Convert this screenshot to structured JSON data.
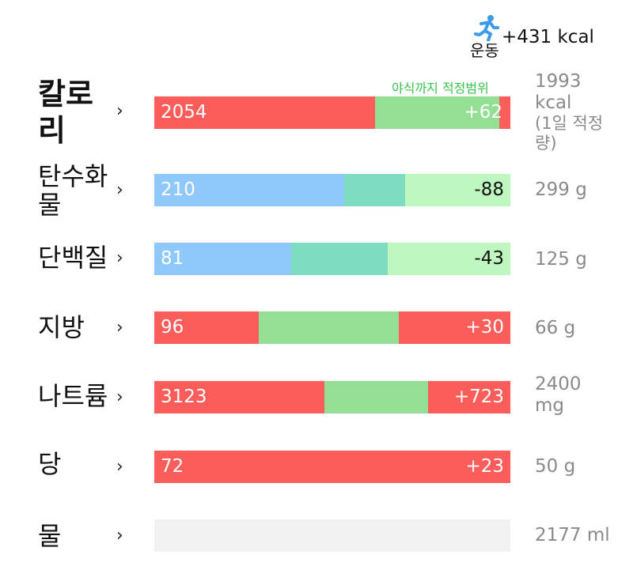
{
  "exercise": {
    "label": "운동",
    "kcal": "+431 kcal",
    "icon": "running-person-icon",
    "icon_color": "#3d9be9"
  },
  "calorie_range_note": "야식까지 적정범위",
  "chevron": "›",
  "colors": {
    "over_red": "#fb5d5b",
    "under_blue": "#8fc8fb",
    "teal": "#7edcc0",
    "green": "#93e095",
    "light_green": "#bef7c0",
    "note_green": "#37c44e",
    "empty_gray": "#f2f2f2"
  },
  "rows": [
    {
      "label": "칼로리",
      "value": "2054",
      "diff": "+62",
      "target": "1993 kcal",
      "target_note": "(1일 적정량)",
      "value_fraction": 0.621,
      "range_end_fraction": 0.969,
      "status": "over"
    },
    {
      "label": "탄수화물",
      "value": "210",
      "diff": "-88",
      "target": "299 g",
      "value_fraction": 0.533,
      "mid_end_fraction": 0.704,
      "status": "under"
    },
    {
      "label": "단백질",
      "value": "81",
      "diff": "-43",
      "target": "125 g",
      "value_fraction": 0.384,
      "mid_end_fraction": 0.656,
      "status": "under"
    },
    {
      "label": "지방",
      "value": "96",
      "diff": "+30",
      "target": "66 g",
      "value_fraction": 0.293,
      "range_end_fraction": 0.686,
      "status": "over"
    },
    {
      "label": "나트륨",
      "value": "3123",
      "diff": "+723",
      "target": "2400 mg",
      "value_fraction": 0.479,
      "range_end_fraction": 0.769,
      "status": "over"
    },
    {
      "label": "당",
      "value": "72",
      "diff": "+23",
      "target": "50 g",
      "value_fraction": 1.0,
      "status": "over"
    },
    {
      "label": "물",
      "value": "",
      "diff": "",
      "target": "2177 ml",
      "value_fraction": 0.0,
      "status": "empty"
    }
  ]
}
